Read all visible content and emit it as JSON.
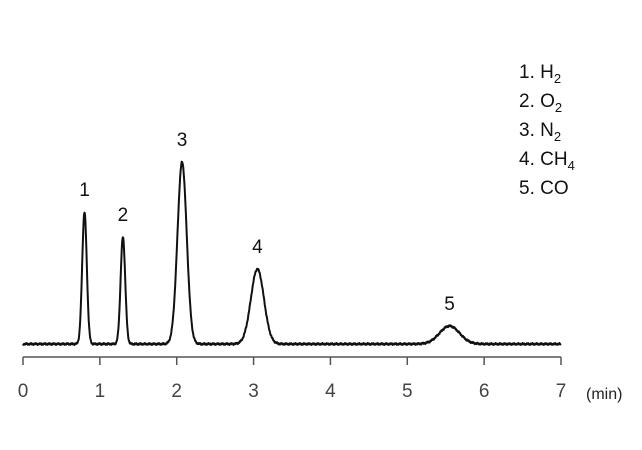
{
  "chart_data": {
    "type": "line",
    "title": "",
    "xlabel": "",
    "x_unit": "(min)",
    "ylabel": "",
    "xlim": [
      0,
      7
    ],
    "x_ticks": [
      "0",
      "1",
      "2",
      "3",
      "4",
      "5",
      "6",
      "7"
    ],
    "grid": false,
    "legend_position": "top-right",
    "baseline": 0,
    "peaks": [
      {
        "label": "1",
        "retention_time": 0.8,
        "height": 132,
        "width": 0.03
      },
      {
        "label": "2",
        "retention_time": 1.3,
        "height": 107,
        "width": 0.03
      },
      {
        "label": "3",
        "retention_time": 2.07,
        "height": 182,
        "width": 0.06
      },
      {
        "label": "4",
        "retention_time": 3.05,
        "height": 75,
        "width": 0.085
      },
      {
        "label": "5",
        "retention_time": 5.55,
        "height": 18,
        "width": 0.13
      }
    ],
    "legend": [
      {
        "num": "1.",
        "base": "H",
        "sub": "2"
      },
      {
        "num": "2.",
        "base": "O",
        "sub": "2"
      },
      {
        "num": "3.",
        "base": "N",
        "sub": "2"
      },
      {
        "num": "4.",
        "base": "CH",
        "sub": "4"
      },
      {
        "num": "5.",
        "base": "CO",
        "sub": ""
      }
    ],
    "colors": {
      "trace": "#111111",
      "axis": "#555555",
      "text": "#111111"
    }
  }
}
